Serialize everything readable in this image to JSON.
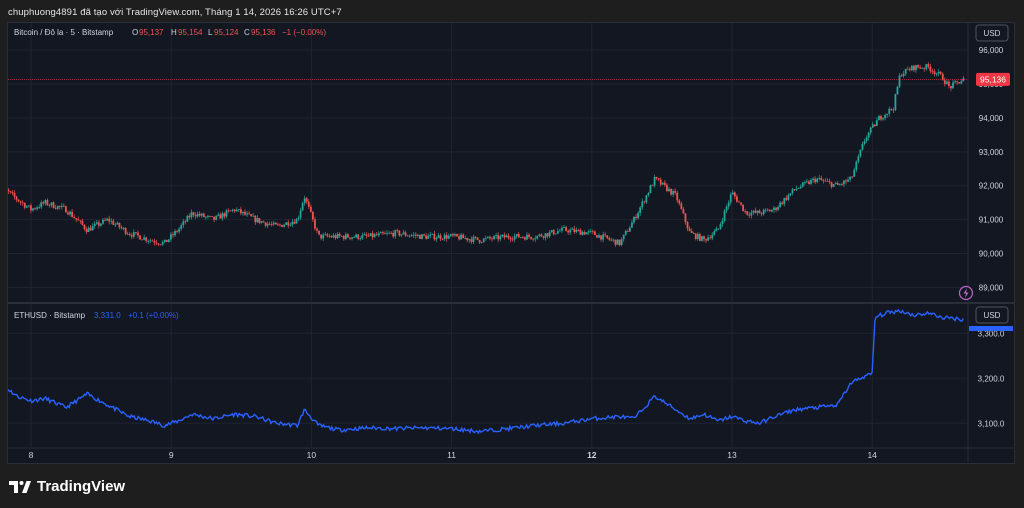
{
  "header": "chuphuong4891 đã tạo với TradingView.com, Tháng 1 14, 2026 16:26 UTC+7",
  "brand": {
    "name": "TradingView",
    "logo_icon": "tradingview-logo-icon"
  },
  "colors": {
    "up": "#26a69a",
    "down": "#ef5350",
    "eth_line": "#2962ff",
    "bg": "#131722",
    "grid": "#1f2430",
    "current_price_bg": "#f23645"
  },
  "main_pane": {
    "symbol": "Bitcoin / Đô la · 5 · Bitstamp",
    "o_label": "O",
    "o_value": "95,137",
    "h_label": "H",
    "h_value": "95,154",
    "l_label": "L",
    "l_value": "95,124",
    "c_label": "C",
    "c_value": "95,136",
    "change": "−1 (−0.00%)",
    "currency": "USD",
    "current_price": "95,136",
    "lightning_icon": "lightning-icon"
  },
  "eth_pane": {
    "symbol": "ETHUSD · Bitstamp",
    "value": "3,331.0",
    "change": "+0.1 (+0.00%)",
    "currency": "USD"
  },
  "chart_data": [
    {
      "type": "candlestick",
      "title": "Bitcoin / Đô la · 5 · Bitstamp",
      "x_tick_labels": [
        "8",
        "9",
        "10",
        "11",
        "12",
        "13",
        "14"
      ],
      "y_tick_labels": [
        "89,000",
        "90,000",
        "91,000",
        "92,000",
        "93,000",
        "94,000",
        "95,000",
        "96,000"
      ],
      "ylim": [
        88600,
        96800
      ],
      "x": [
        7.75,
        7.9,
        8.0,
        8.1,
        8.25,
        8.4,
        8.55,
        8.7,
        8.85,
        8.95,
        9.05,
        9.15,
        9.3,
        9.45,
        9.6,
        9.75,
        9.9,
        9.95,
        10.05,
        10.2,
        10.4,
        10.6,
        10.8,
        11.0,
        11.2,
        11.4,
        11.6,
        11.8,
        12.0,
        12.2,
        12.3,
        12.45,
        12.6,
        12.7,
        12.8,
        12.9,
        13.0,
        13.1,
        13.2,
        13.3,
        13.45,
        13.6,
        13.75,
        13.85,
        13.95,
        14.05,
        14.15,
        14.2,
        14.3,
        14.4,
        14.5,
        14.55,
        14.65
      ],
      "close": [
        92100,
        91600,
        91300,
        91500,
        91300,
        90700,
        91000,
        90600,
        90400,
        90300,
        90700,
        91200,
        91000,
        91300,
        91000,
        90800,
        91000,
        91700,
        90500,
        90500,
        90500,
        90600,
        90500,
        90500,
        90400,
        90500,
        90500,
        90700,
        90600,
        90300,
        91000,
        92200,
        91700,
        90600,
        90400,
        90700,
        91800,
        91200,
        91200,
        91300,
        91900,
        92200,
        92000,
        92200,
        93400,
        94000,
        94300,
        95300,
        95500,
        95500,
        95200,
        94900,
        95136
      ]
    },
    {
      "type": "line",
      "title": "ETHUSD · Bitstamp",
      "x_tick_labels": [
        "8",
        "9",
        "10",
        "11",
        "12",
        "13",
        "14"
      ],
      "y_tick_labels": [
        "3,100.0",
        "3,200.0",
        "3,300.0"
      ],
      "ylim": [
        3045,
        3365
      ],
      "x": [
        7.75,
        7.8,
        7.9,
        8.0,
        8.1,
        8.25,
        8.4,
        8.55,
        8.7,
        8.85,
        8.95,
        9.05,
        9.15,
        9.3,
        9.45,
        9.6,
        9.75,
        9.9,
        9.95,
        10.05,
        10.2,
        10.4,
        10.6,
        10.8,
        11.0,
        11.2,
        11.4,
        11.6,
        11.8,
        12.0,
        12.2,
        12.3,
        12.45,
        12.6,
        12.7,
        12.8,
        12.9,
        13.0,
        13.1,
        13.2,
        13.3,
        13.45,
        13.6,
        13.75,
        13.85,
        13.95,
        14.0,
        14.02,
        14.1,
        14.2,
        14.3,
        14.4,
        14.5,
        14.65
      ],
      "values": [
        3215,
        3185,
        3160,
        3150,
        3155,
        3135,
        3165,
        3140,
        3115,
        3105,
        3095,
        3105,
        3120,
        3110,
        3120,
        3115,
        3100,
        3095,
        3130,
        3095,
        3085,
        3090,
        3088,
        3090,
        3088,
        3082,
        3088,
        3095,
        3100,
        3110,
        3115,
        3110,
        3160,
        3130,
        3110,
        3120,
        3105,
        3115,
        3105,
        3100,
        3115,
        3130,
        3135,
        3140,
        3190,
        3205,
        3210,
        3335,
        3345,
        3350,
        3340,
        3345,
        3335,
        3331
      ]
    }
  ]
}
